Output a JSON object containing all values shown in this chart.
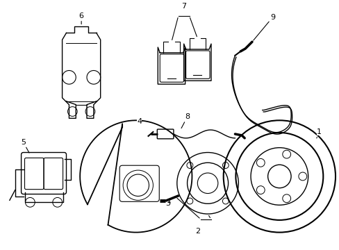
{
  "background_color": "#ffffff",
  "line_color": "#000000",
  "lw": 1.0
}
